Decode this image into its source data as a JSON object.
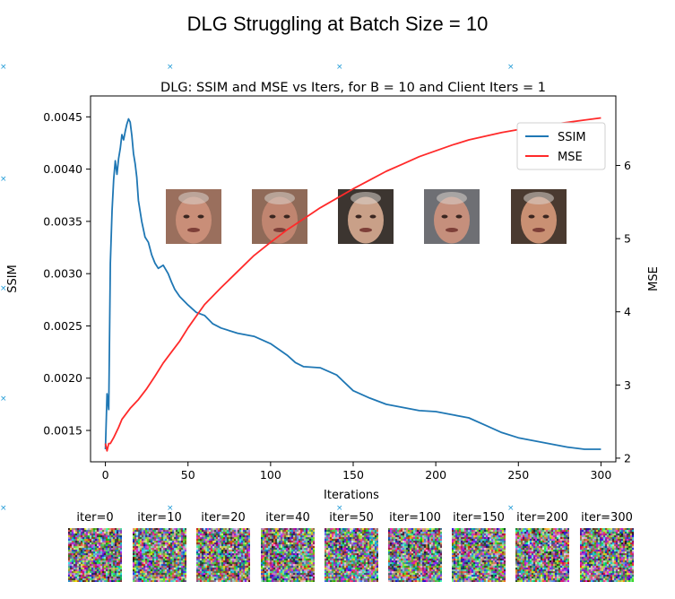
{
  "title": "DLG Struggling at Batch Size = 10",
  "chart_data": {
    "type": "line",
    "title": "DLG: SSIM and MSE vs Iters, for B = 10 and Client Iters = 1",
    "xlabel": "Iterations",
    "ylabel_left": "SSIM",
    "ylabel_right": "MSE",
    "xlim": [
      -9,
      309
    ],
    "ylim_left": [
      0.0012,
      0.0047
    ],
    "ylim_right": [
      1.95,
      6.95
    ],
    "x_ticks": [
      0,
      50,
      100,
      150,
      200,
      250,
      300
    ],
    "y_ticks_left": [
      0.0015,
      0.002,
      0.0025,
      0.003,
      0.0035,
      0.004,
      0.0045
    ],
    "y_ticks_right": [
      2,
      3,
      4,
      5,
      6
    ],
    "legend_position": "top-right",
    "series": [
      {
        "name": "SSIM",
        "axis": "left",
        "color": "#1f77b4",
        "x": [
          0,
          1,
          2,
          3,
          4,
          5,
          6,
          7,
          8,
          9,
          10,
          11,
          12,
          13,
          14,
          15,
          16,
          17,
          18,
          19,
          20,
          22,
          24,
          26,
          28,
          30,
          32,
          35,
          38,
          40,
          42,
          45,
          50,
          55,
          60,
          65,
          70,
          80,
          90,
          100,
          110,
          115,
          120,
          130,
          140,
          150,
          160,
          170,
          180,
          190,
          200,
          210,
          220,
          230,
          240,
          250,
          260,
          270,
          280,
          290,
          300
        ],
        "values": [
          0.00132,
          0.00185,
          0.0017,
          0.0031,
          0.0036,
          0.0039,
          0.00408,
          0.00395,
          0.0041,
          0.0042,
          0.00433,
          0.00428,
          0.00436,
          0.00443,
          0.00448,
          0.00445,
          0.00432,
          0.00415,
          0.00405,
          0.00392,
          0.0037,
          0.0035,
          0.00335,
          0.0033,
          0.00318,
          0.0031,
          0.00305,
          0.00308,
          0.003,
          0.00292,
          0.00285,
          0.00278,
          0.0027,
          0.00263,
          0.0026,
          0.00252,
          0.00248,
          0.00243,
          0.0024,
          0.00233,
          0.00222,
          0.00215,
          0.00211,
          0.0021,
          0.00203,
          0.00188,
          0.00181,
          0.00175,
          0.00172,
          0.00169,
          0.00168,
          0.00165,
          0.00162,
          0.00155,
          0.00148,
          0.00143,
          0.0014,
          0.00137,
          0.00134,
          0.00132,
          0.00132
        ]
      },
      {
        "name": "MSE",
        "axis": "right",
        "color": "#ff2a2a",
        "x": [
          0,
          1,
          2,
          3,
          5,
          8,
          10,
          15,
          20,
          25,
          30,
          35,
          40,
          45,
          50,
          55,
          60,
          70,
          80,
          90,
          100,
          110,
          120,
          130,
          140,
          150,
          160,
          170,
          180,
          190,
          200,
          210,
          220,
          230,
          240,
          250,
          260,
          270,
          280,
          290,
          300
        ],
        "values": [
          2.2,
          2.1,
          2.2,
          2.2,
          2.28,
          2.42,
          2.53,
          2.68,
          2.8,
          2.95,
          3.12,
          3.3,
          3.45,
          3.6,
          3.78,
          3.94,
          4.1,
          4.33,
          4.55,
          4.77,
          4.95,
          5.12,
          5.27,
          5.42,
          5.55,
          5.68,
          5.8,
          5.92,
          6.02,
          6.12,
          6.2,
          6.28,
          6.35,
          6.4,
          6.45,
          6.49,
          6.53,
          6.56,
          6.59,
          6.62,
          6.65
        ]
      }
    ]
  },
  "face_thumbnails": [
    {
      "name": "face-1",
      "label": "face image 1"
    },
    {
      "name": "face-2",
      "label": "face image 2"
    },
    {
      "name": "face-3",
      "label": "face image 3"
    },
    {
      "name": "face-4",
      "label": "face image 4"
    },
    {
      "name": "face-5",
      "label": "face image 5"
    }
  ],
  "reconstructions": [
    {
      "label": "iter=0"
    },
    {
      "label": "iter=10"
    },
    {
      "label": "iter=20"
    },
    {
      "label": "iter=40"
    },
    {
      "label": "iter=50"
    },
    {
      "label": "iter=100"
    },
    {
      "label": "iter=150"
    },
    {
      "label": "iter=200"
    },
    {
      "label": "iter=300"
    }
  ],
  "marker_symbol": "×"
}
